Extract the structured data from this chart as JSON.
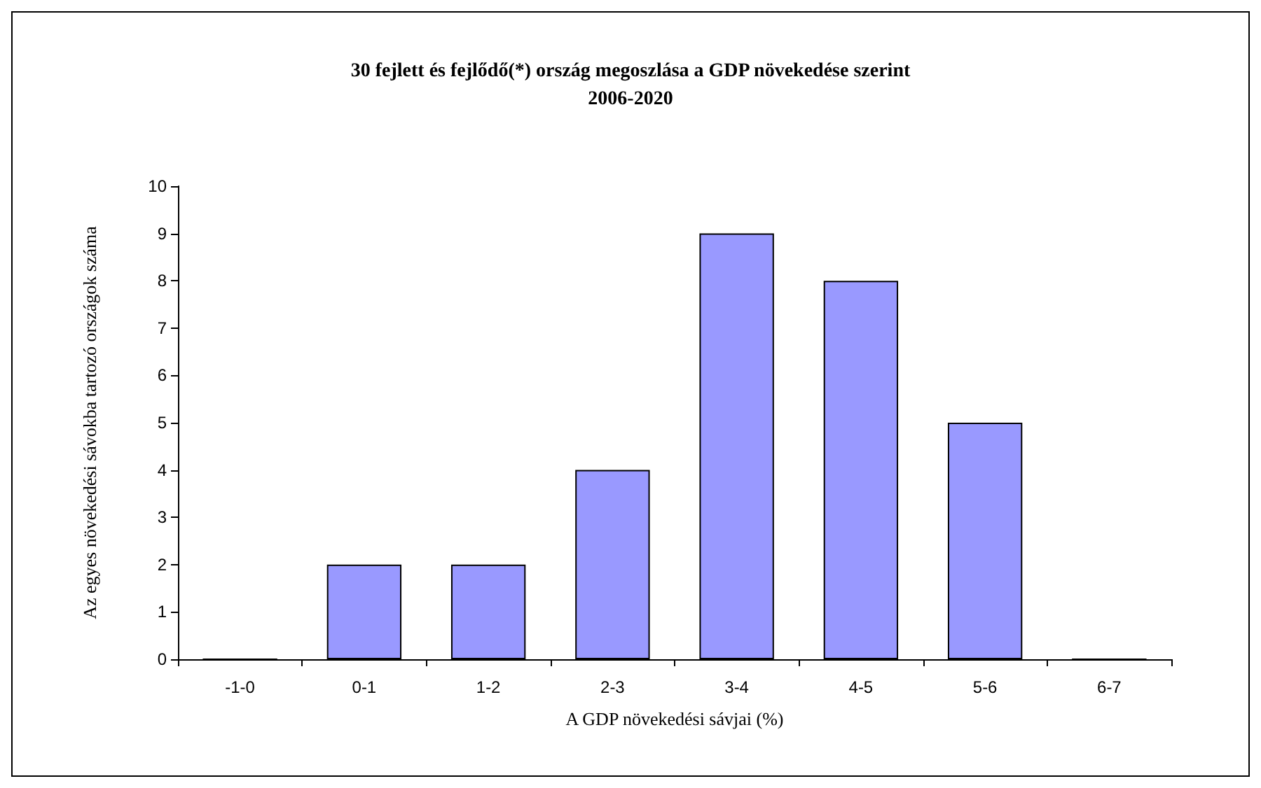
{
  "chart_data": {
    "type": "bar",
    "title": "30 fejlett és fejlődő(*) ország megoszlása a GDP növekedése szerint",
    "subtitle": "2006-2020",
    "xlabel": "A GDP növekedési sávjai (%)",
    "ylabel": "Az egyes növekedési sávokba tartozó országok száma",
    "categories": [
      "-1-0",
      "0-1",
      "1-2",
      "2-3",
      "3-4",
      "4-5",
      "5-6",
      "6-7"
    ],
    "values": [
      0,
      2,
      2,
      4,
      9,
      8,
      5,
      0
    ],
    "color": "#9999ff",
    "ylim": [
      0,
      10
    ],
    "yticks": [
      0,
      1,
      2,
      3,
      4,
      5,
      6,
      7,
      8,
      9,
      10
    ],
    "grid": false
  }
}
